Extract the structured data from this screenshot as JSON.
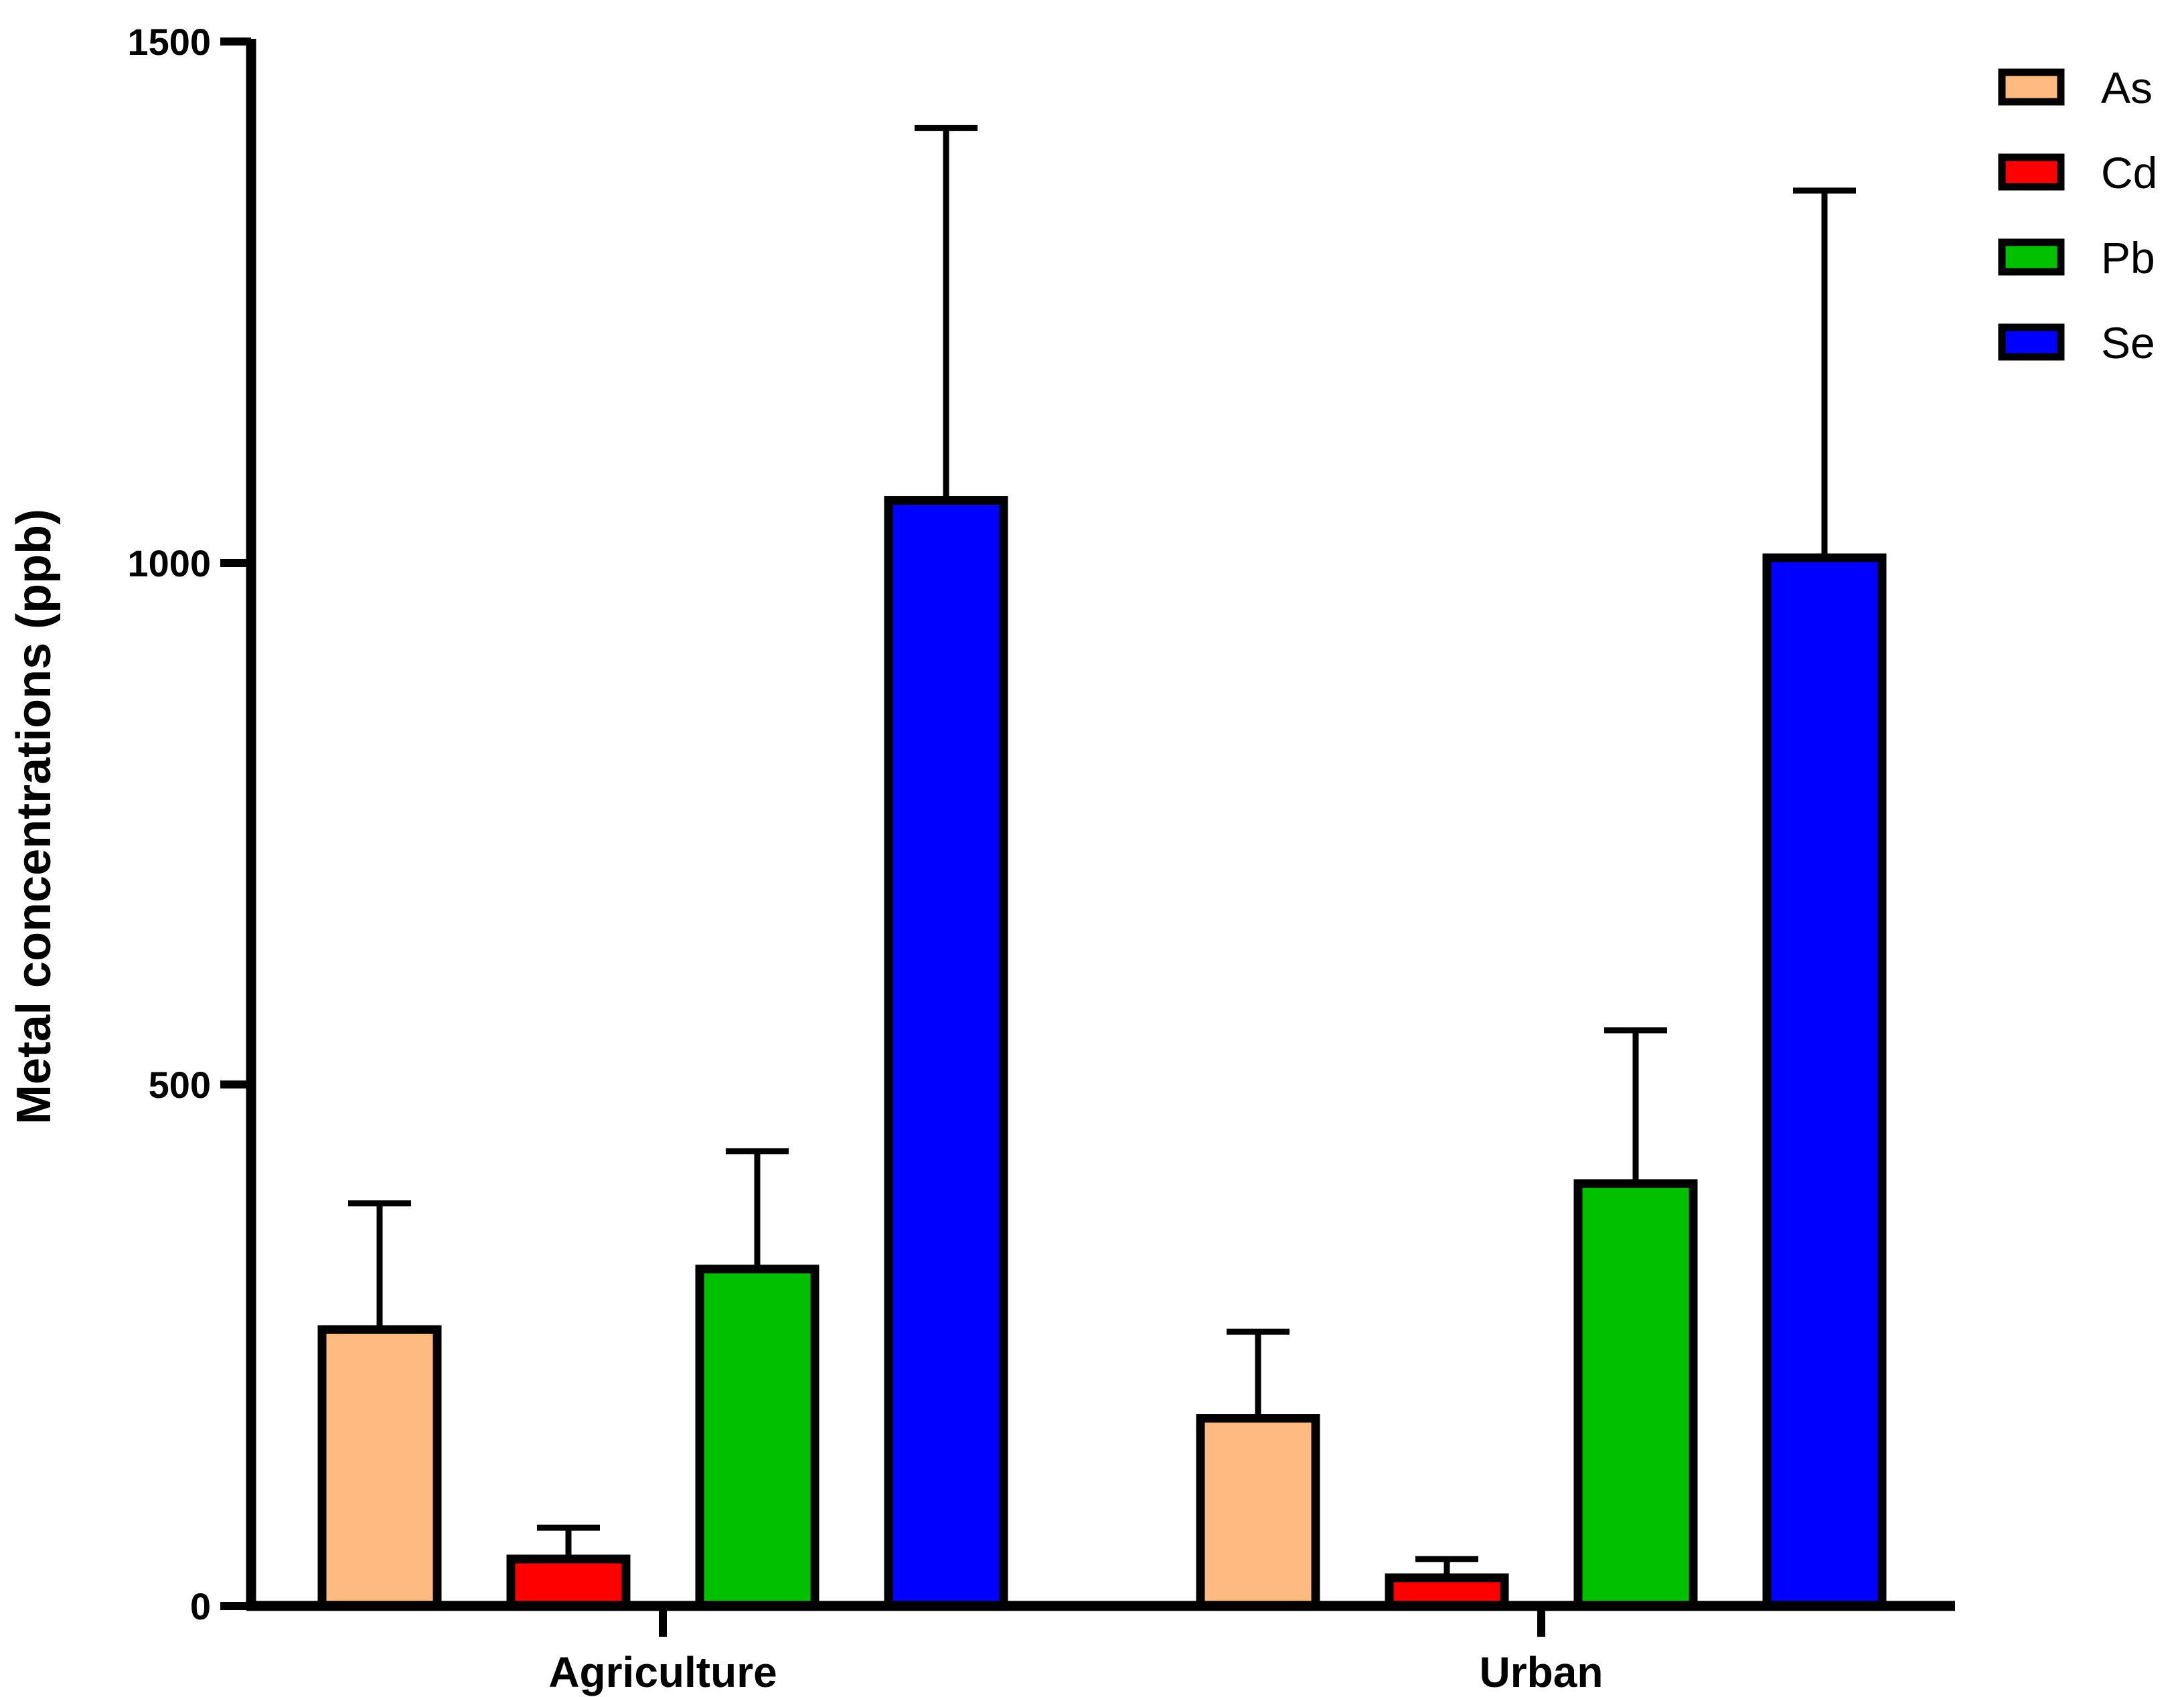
{
  "chart_data": {
    "type": "bar",
    "title": "",
    "xlabel": "",
    "ylabel": "Metal concentrations (ppb)",
    "categories": [
      "Agriculture",
      "Urban"
    ],
    "ylim": [
      0,
      1500
    ],
    "yticks": [
      0,
      500,
      1000,
      1500
    ],
    "grid": false,
    "legend_position": "top-right",
    "series": [
      {
        "name": "As",
        "color": "#FFBB7F",
        "values": [
          265,
          180
        ],
        "errors": [
          121,
          83
        ]
      },
      {
        "name": "Cd",
        "color": "#FF0000",
        "values": [
          45,
          27
        ],
        "errors": [
          30,
          18
        ]
      },
      {
        "name": "Pb",
        "color": "#00C000",
        "values": [
          323,
          405
        ],
        "errors": [
          113,
          147
        ]
      },
      {
        "name": "Se",
        "color": "#0000FF",
        "values": [
          1060,
          1005
        ],
        "errors": [
          357,
          352
        ]
      }
    ]
  }
}
